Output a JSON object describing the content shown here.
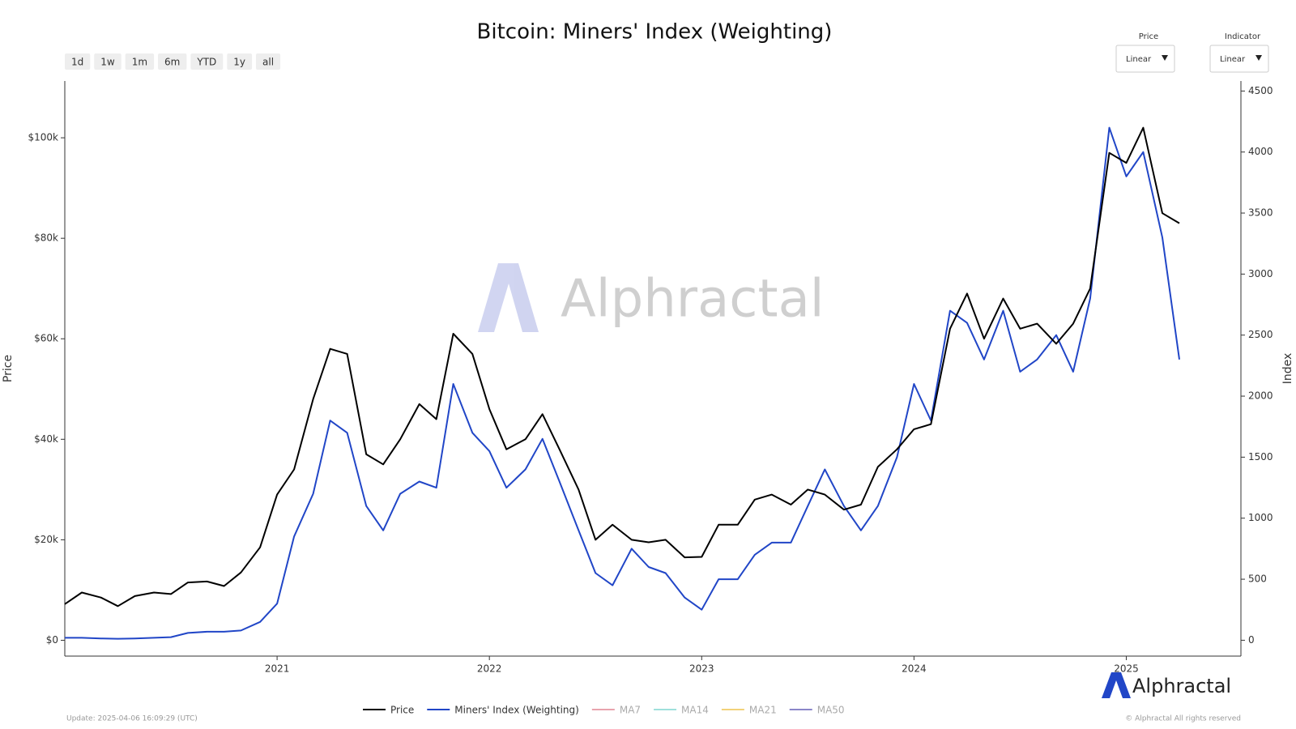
{
  "chart_data": {
    "type": "line",
    "title": "Bitcoin: Miners' Index (Weighting)",
    "ylabel": "Price",
    "y2label": "Index",
    "x": [
      2020.0,
      2020.08,
      2020.17,
      2020.25,
      2020.33,
      2020.42,
      2020.5,
      2020.58,
      2020.67,
      2020.75,
      2020.83,
      2020.92,
      2021.0,
      2021.08,
      2021.17,
      2021.25,
      2021.33,
      2021.42,
      2021.5,
      2021.58,
      2021.67,
      2021.75,
      2021.83,
      2021.92,
      2022.0,
      2022.08,
      2022.17,
      2022.25,
      2022.33,
      2022.42,
      2022.5,
      2022.58,
      2022.67,
      2022.75,
      2022.83,
      2022.92,
      2023.0,
      2023.08,
      2023.17,
      2023.25,
      2023.33,
      2023.42,
      2023.5,
      2023.58,
      2023.67,
      2023.75,
      2023.83,
      2023.92,
      2024.0,
      2024.08,
      2024.17,
      2024.25,
      2024.33,
      2024.42,
      2024.5,
      2024.58,
      2024.67,
      2024.75,
      2024.83,
      2024.92,
      2025.0,
      2025.08,
      2025.17,
      2025.25
    ],
    "series": [
      {
        "name": "Price",
        "color": "#000000",
        "axis": "y",
        "values": [
          7200,
          9500,
          8500,
          6800,
          8800,
          9500,
          9200,
          11500,
          11700,
          10800,
          13500,
          18500,
          29000,
          34000,
          48000,
          58000,
          57000,
          37000,
          35000,
          40000,
          47000,
          44000,
          61000,
          57000,
          46000,
          38000,
          40000,
          45000,
          38000,
          30000,
          20000,
          23000,
          20000,
          19500,
          20000,
          16500,
          16600,
          23000,
          23000,
          28000,
          29000,
          27000,
          30000,
          29000,
          26000,
          27000,
          34500,
          38000,
          42000,
          43000,
          62000,
          69000,
          60000,
          68000,
          62000,
          63000,
          59000,
          63000,
          70000,
          97000,
          95000,
          102000,
          85000,
          83000
        ]
      },
      {
        "name": "Miners' Index (Weighting)",
        "color": "#2146c7",
        "axis": "y2",
        "values": [
          20,
          20,
          15,
          12,
          15,
          20,
          25,
          60,
          70,
          70,
          80,
          150,
          300,
          850,
          1200,
          1800,
          1700,
          1100,
          900,
          1200,
          1300,
          1250,
          2100,
          1700,
          1550,
          1250,
          1400,
          1650,
          1300,
          900,
          550,
          450,
          750,
          600,
          550,
          350,
          250,
          500,
          500,
          700,
          800,
          800,
          1100,
          1400,
          1100,
          900,
          1100,
          1500,
          2100,
          1800,
          2700,
          2600,
          2300,
          2700,
          2200,
          2300,
          2500,
          2200,
          2800,
          4200,
          3800,
          4000,
          3300,
          2300
        ]
      }
    ],
    "legend_inactive": [
      {
        "name": "MA7",
        "color": "#e8a3ad"
      },
      {
        "name": "MA14",
        "color": "#9fe0dc"
      },
      {
        "name": "MA21",
        "color": "#f2d27a"
      },
      {
        "name": "MA50",
        "color": "#8b86c9"
      }
    ],
    "xlim": [
      2020.0,
      2025.54
    ],
    "xticks": [
      2021,
      2022,
      2023,
      2024,
      2025
    ],
    "ylim": [
      -3150,
      111300
    ],
    "yticks": [
      {
        "value": 0,
        "label": "$0"
      },
      {
        "value": 20000,
        "label": "$20k"
      },
      {
        "value": 40000,
        "label": "$40k"
      },
      {
        "value": 60000,
        "label": "$60k"
      },
      {
        "value": 80000,
        "label": "$80k"
      },
      {
        "value": 100000,
        "label": "$100k"
      }
    ],
    "y2lim": [
      -130,
      4582
    ],
    "y2ticks": [
      0,
      500,
      1000,
      1500,
      2000,
      2500,
      3000,
      3500,
      4000,
      4500
    ],
    "grid": false
  },
  "controls": {
    "range_buttons": [
      "1d",
      "1w",
      "1m",
      "6m",
      "YTD",
      "1y",
      "all"
    ],
    "scales": [
      {
        "label": "Price",
        "value": "Linear"
      },
      {
        "label": "Indicator",
        "value": "Linear"
      }
    ]
  },
  "watermark": "Alphractal",
  "logo": "Alphractal",
  "footer": {
    "update": "Update: 2025-04-06 16:09:29 (UTC)",
    "copyright": "© Alphractal All rights reserved"
  }
}
